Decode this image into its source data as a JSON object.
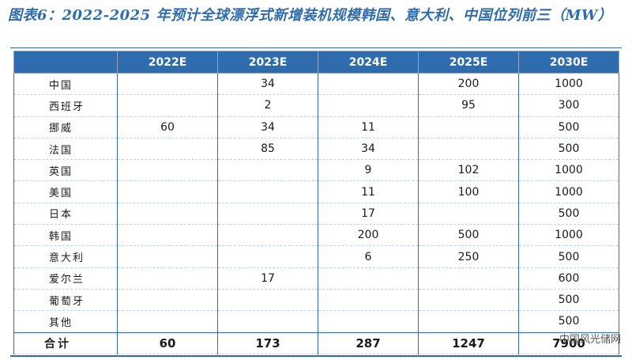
{
  "title": "图表6：2022-2025 年预计全球漂浮式新增装机规模韩国、意大利、中国位列前三（MW）",
  "table": {
    "corner": "",
    "headers": [
      "2022E",
      "2023E",
      "2024E",
      "2025E",
      "2030E"
    ],
    "rows": [
      {
        "country": "中国",
        "values": [
          "",
          "34",
          "",
          "200",
          "1000"
        ]
      },
      {
        "country": "西班牙",
        "values": [
          "",
          "2",
          "",
          "95",
          "300"
        ]
      },
      {
        "country": "挪威",
        "values": [
          "60",
          "34",
          "11",
          "",
          "500"
        ]
      },
      {
        "country": "法国",
        "values": [
          "",
          "85",
          "34",
          "",
          "500"
        ]
      },
      {
        "country": "英国",
        "values": [
          "",
          "",
          "9",
          "102",
          "1000"
        ]
      },
      {
        "country": "美国",
        "values": [
          "",
          "",
          "11",
          "100",
          "1000"
        ]
      },
      {
        "country": "日本",
        "values": [
          "",
          "",
          "17",
          "",
          "500"
        ]
      },
      {
        "country": "韩国",
        "values": [
          "",
          "",
          "200",
          "500",
          "1000"
        ]
      },
      {
        "country": "意大利",
        "values": [
          "",
          "",
          "6",
          "250",
          "500"
        ]
      },
      {
        "country": "爱尔兰",
        "values": [
          "",
          "17",
          "",
          "",
          "600"
        ]
      },
      {
        "country": "葡萄牙",
        "values": [
          "",
          "",
          "",
          "",
          "500"
        ]
      },
      {
        "country": "其他",
        "values": [
          "",
          "",
          "",
          "",
          "500"
        ]
      }
    ],
    "total": {
      "label": "合计",
      "values": [
        "60",
        "173",
        "287",
        "1247",
        "7900"
      ]
    }
  },
  "watermark": "中国风光储网",
  "colors": {
    "accent": "#2f6cad",
    "header_text": "#ffffff"
  }
}
